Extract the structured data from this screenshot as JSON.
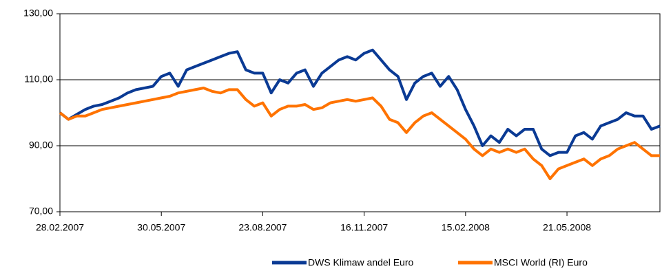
{
  "chart_data": {
    "type": "line",
    "categories": [
      "28.02.2007",
      null,
      null,
      null,
      null,
      null,
      null,
      null,
      null,
      null,
      null,
      null,
      "30.05.2007",
      null,
      null,
      null,
      null,
      null,
      null,
      null,
      null,
      null,
      null,
      null,
      "23.08.2007",
      null,
      null,
      null,
      null,
      null,
      null,
      null,
      null,
      null,
      null,
      null,
      "16.11.2007",
      null,
      null,
      null,
      null,
      null,
      null,
      null,
      null,
      null,
      null,
      null,
      "15.02.2008",
      null,
      null,
      null,
      null,
      null,
      null,
      null,
      null,
      null,
      null,
      null,
      "21.05.2008",
      null,
      null,
      null,
      null,
      null,
      null,
      null,
      null,
      null,
      null,
      null
    ],
    "series": [
      {
        "name": "DWS Klimaw andel Euro",
        "color": "#0a3a94",
        "values": [
          100,
          98,
          99.5,
          101,
          102,
          102.5,
          103.5,
          104.5,
          106,
          107,
          107.5,
          108,
          111,
          112,
          108,
          113,
          114,
          115,
          116,
          117,
          118,
          118.5,
          113,
          112,
          112,
          106,
          110,
          109,
          112,
          113,
          108,
          112,
          114,
          116,
          117,
          116,
          118,
          119,
          116,
          113,
          111,
          104,
          109,
          111,
          112,
          108,
          111,
          107,
          101,
          96,
          90,
          93,
          91,
          95,
          93,
          95,
          95,
          89,
          87,
          88,
          88,
          93,
          94,
          92,
          96,
          97,
          98,
          100,
          99,
          99,
          95,
          96
        ]
      },
      {
        "name": "MSCI World (RI) Euro",
        "color": "#ff7300",
        "values": [
          100,
          98,
          99,
          99,
          100,
          101,
          101.5,
          102,
          102.5,
          103,
          103.5,
          104,
          104.5,
          105,
          106,
          106.5,
          107,
          107.5,
          106.5,
          106,
          107,
          107,
          104,
          102,
          103,
          99,
          101,
          102,
          102,
          102.5,
          101,
          101.5,
          103,
          103.5,
          104,
          103.5,
          104,
          104.5,
          102,
          98,
          97,
          94,
          97,
          99,
          100,
          98,
          96,
          94,
          92,
          89,
          87,
          89,
          88,
          89,
          88,
          89,
          86,
          84,
          80,
          83,
          84,
          85,
          86,
          84,
          86,
          87,
          89,
          90,
          91,
          89,
          87,
          87
        ]
      }
    ],
    "ylim": [
      70,
      130
    ],
    "yticks": [
      {
        "value": 70,
        "label": "70,00"
      },
      {
        "value": 90,
        "label": "90,00"
      },
      {
        "value": 110,
        "label": "110,00"
      },
      {
        "value": 130,
        "label": "130,00"
      }
    ],
    "grid": true,
    "legend": "bottom"
  }
}
